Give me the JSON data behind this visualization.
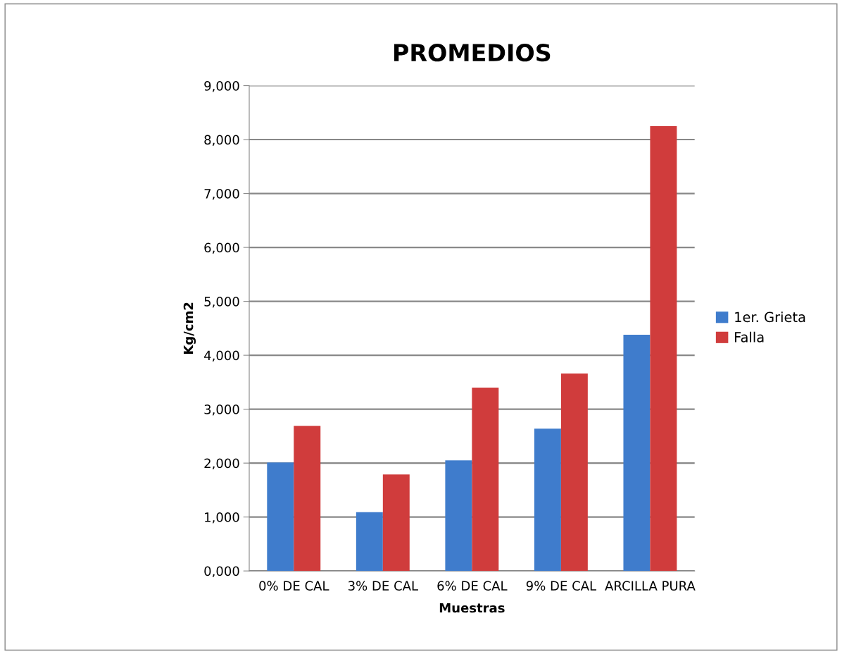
{
  "chart_data": {
    "type": "bar",
    "title": "PROMEDIOS",
    "xlabel": "Muestras",
    "ylabel": "Kg/cm2",
    "categories": [
      "0% DE CAL",
      "3% DE CAL",
      "6% DE CAL",
      "9% DE CAL",
      "ARCILLA PURA"
    ],
    "series": [
      {
        "name": "1er. Grieta",
        "color": "#3f7ccc",
        "values": [
          2010,
          1090,
          2050,
          2640,
          4380
        ]
      },
      {
        "name": "Falla",
        "color": "#d03c3c",
        "values": [
          2690,
          1790,
          3400,
          3660,
          8250
        ]
      }
    ],
    "ylim": [
      0,
      9000
    ],
    "yticks": [
      {
        "value": 0,
        "label": "0,000"
      },
      {
        "value": 1000,
        "label": "1,000"
      },
      {
        "value": 2000,
        "label": "2,000"
      },
      {
        "value": 3000,
        "label": "3,000"
      },
      {
        "value": 4000,
        "label": "4,000"
      },
      {
        "value": 5000,
        "label": "5,000"
      },
      {
        "value": 6000,
        "label": "6,000"
      },
      {
        "value": 7000,
        "label": "7,000"
      },
      {
        "value": 8000,
        "label": "8,000"
      },
      {
        "value": 9000,
        "label": "9,000"
      }
    ],
    "grid": "y",
    "legend": "right"
  }
}
